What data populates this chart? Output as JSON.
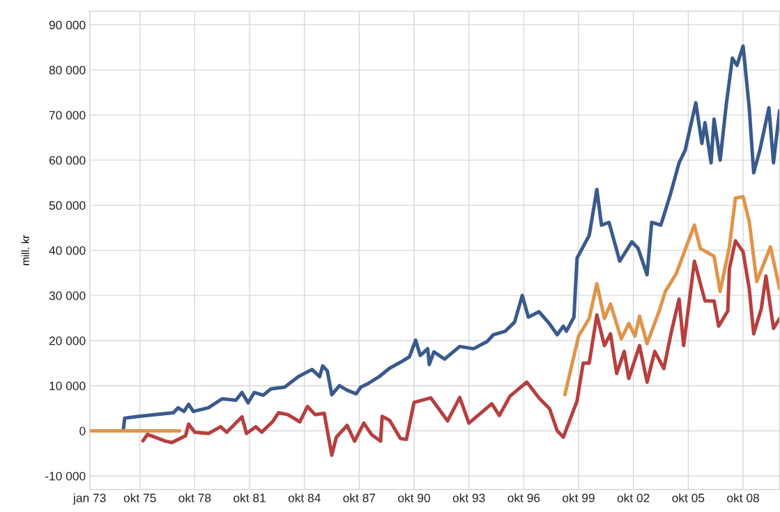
{
  "chart_data": {
    "type": "line",
    "ylabel": "mill. kr",
    "grid": true,
    "line_style": "solid",
    "xlim": [
      "1973-01",
      "2010-10"
    ],
    "ylim": [
      -13000,
      93000
    ],
    "xticks": [
      {
        "value": "1973-01",
        "label": "jan 73"
      },
      {
        "value": "1975-10",
        "label": "okt 75"
      },
      {
        "value": "1978-10",
        "label": "okt 78"
      },
      {
        "value": "1981-10",
        "label": "okt 81"
      },
      {
        "value": "1984-10",
        "label": "okt 84"
      },
      {
        "value": "1987-10",
        "label": "okt 87"
      },
      {
        "value": "1990-10",
        "label": "okt 90"
      },
      {
        "value": "1993-10",
        "label": "okt 93"
      },
      {
        "value": "1996-10",
        "label": "okt 96"
      },
      {
        "value": "1999-10",
        "label": "okt 99"
      },
      {
        "value": "2002-10",
        "label": "okt 02"
      },
      {
        "value": "2005-10",
        "label": "okt 05"
      },
      {
        "value": "2008-10",
        "label": "okt 08"
      }
    ],
    "yticks": [
      {
        "value": -10000,
        "label": "-10 000"
      },
      0,
      {
        "value": 10000,
        "label": "10 000"
      },
      {
        "value": 20000,
        "label": "20 000"
      },
      {
        "value": 30000,
        "label": "30 000"
      },
      {
        "value": 40000,
        "label": "40 000"
      },
      {
        "value": 50000,
        "label": "50 000"
      },
      {
        "value": 60000,
        "label": "60 000"
      },
      {
        "value": 70000,
        "label": "70 000"
      },
      {
        "value": 80000,
        "label": "80 000"
      },
      {
        "value": 90000,
        "label": "90 000"
      }
    ],
    "series": [
      {
        "color": "#3a5a8c",
        "x": [
          "1974-11",
          "1974-12",
          "1975-09",
          "1976-11",
          "1977-08",
          "1977-11",
          "1978-03",
          "1978-06",
          "1978-09",
          "1979-07",
          "1980-04",
          "1981-01",
          "1981-05",
          "1981-09",
          "1982-01",
          "1982-07",
          "1982-12",
          "1983-09",
          "1984-06",
          "1985-03",
          "1985-08",
          "1985-10",
          "1986-01",
          "1986-04",
          "1986-09",
          "1987-02",
          "1987-08",
          "1987-11",
          "1988-04",
          "1988-11",
          "1989-06",
          "1990-01",
          "1990-07",
          "1990-11",
          "1991-02",
          "1991-07",
          "1991-08",
          "1991-11",
          "1992-06",
          "1993-04",
          "1994-01",
          "1994-10",
          "1995-02",
          "1995-10",
          "1996-04",
          "1996-09",
          "1997-01",
          "1997-08",
          "1998-03",
          "1998-08",
          "1998-12",
          "1999-02",
          "1999-07",
          "1999-09",
          "2000-05",
          "2000-10",
          "2001-01",
          "2001-06",
          "2002-01",
          "2002-09",
          "2003-01",
          "2003-07",
          "2003-10",
          "2004-04",
          "2004-10",
          "2005-04",
          "2005-08",
          "2006-03",
          "2006-07",
          "2006-09",
          "2007-01",
          "2007-03",
          "2007-07",
          "2007-11",
          "2008-03",
          "2008-06",
          "2008-10",
          "2009-02",
          "2009-05",
          "2009-09",
          "2010-03",
          "2010-06",
          "2010-10"
        ],
        "values": [
          0,
          2800,
          3200,
          3700,
          4000,
          5100,
          4300,
          5900,
          4300,
          5100,
          7100,
          6800,
          8500,
          6200,
          8500,
          7900,
          9300,
          9700,
          12000,
          13600,
          12000,
          14400,
          13300,
          8000,
          10000,
          9000,
          8200,
          9700,
          10500,
          12000,
          13900,
          15200,
          16400,
          20100,
          16700,
          18200,
          14700,
          17500,
          15900,
          18700,
          18200,
          19800,
          21300,
          22100,
          24100,
          30000,
          25200,
          26400,
          23700,
          21300,
          23200,
          22100,
          25200,
          38300,
          43300,
          53500,
          45600,
          46200,
          37600,
          41900,
          40500,
          34600,
          46200,
          45600,
          52100,
          59400,
          62200,
          72700,
          63700,
          68300,
          59400,
          69100,
          60000,
          72400,
          82600,
          81000,
          85300,
          71600,
          57200,
          62200,
          71600,
          59400,
          71000
        ]
      },
      {
        "color": "#b5403f",
        "x": [
          "1975-12",
          "1976-03",
          "1977-03",
          "1977-07",
          "1978-04",
          "1978-06",
          "1978-10",
          "1979-07",
          "1980-03",
          "1980-07",
          "1981-05",
          "1981-08",
          "1982-02",
          "1982-06",
          "1983-01",
          "1983-05",
          "1983-11",
          "1984-07",
          "1984-12",
          "1985-05",
          "1985-11",
          "1986-04",
          "1986-07",
          "1987-02",
          "1987-07",
          "1988-01",
          "1988-06",
          "1988-12",
          "1989-01",
          "1989-06",
          "1990-01",
          "1990-05",
          "1990-10",
          "1991-09",
          "1992-08",
          "1993-04",
          "1993-10",
          "1995-01",
          "1995-06",
          "1996-01",
          "1996-12",
          "1997-08",
          "1998-03",
          "1998-08",
          "1998-12",
          "1999-09",
          "2000-01",
          "2000-05",
          "2000-10",
          "2001-03",
          "2001-07",
          "2001-11",
          "2002-04",
          "2002-07",
          "2003-02",
          "2003-07",
          "2003-12",
          "2004-06",
          "2004-11",
          "2005-04",
          "2005-07",
          "2006-02",
          "2006-09",
          "2007-03",
          "2007-06",
          "2007-12",
          "2008-01",
          "2008-05",
          "2008-10",
          "2009-02",
          "2009-05",
          "2009-10",
          "2010-01",
          "2010-06",
          "2010-10"
        ],
        "values": [
          -2200,
          -800,
          -2300,
          -2600,
          -1100,
          1500,
          -300,
          -600,
          900,
          -300,
          3100,
          -600,
          900,
          -300,
          2000,
          4000,
          3600,
          2000,
          5400,
          3600,
          3900,
          -5400,
          -1400,
          1200,
          -2300,
          1700,
          -800,
          -2300,
          3200,
          2300,
          -1700,
          -1900,
          6300,
          7300,
          2200,
          7400,
          1700,
          6000,
          3400,
          7700,
          10800,
          7300,
          4900,
          0,
          -1400,
          6600,
          15000,
          15000,
          25700,
          18900,
          21500,
          12700,
          17600,
          11600,
          18900,
          10800,
          17600,
          13800,
          22100,
          29200,
          18900,
          37600,
          28800,
          28800,
          23200,
          26600,
          35900,
          42100,
          39700,
          31500,
          21500,
          27100,
          34300,
          22700,
          24900
        ]
      },
      {
        "color": "#e0944a",
        "x": [
          "1973-01",
          "1977-12",
          "1988-01",
          "1999-01",
          "1999-10",
          "2000-05",
          "2000-10",
          "2001-03",
          "2001-07",
          "2002-02",
          "2002-07",
          "2002-11",
          "2003-02",
          "2003-07",
          "2004-03",
          "2004-07",
          "2005-02",
          "2006-02",
          "2006-06",
          "2007-03",
          "2007-07",
          "2008-01",
          "2008-05",
          "2008-10",
          "2009-02",
          "2009-07",
          "2010-04",
          "2010-10"
        ],
        "values": [
          0,
          0,
          null,
          8000,
          21000,
          24900,
          32600,
          24900,
          28100,
          20400,
          23800,
          21000,
          25400,
          19300,
          26600,
          30900,
          34800,
          45600,
          40400,
          38700,
          30900,
          40800,
          51600,
          51900,
          46400,
          33100,
          40800,
          31500
        ]
      }
    ]
  }
}
